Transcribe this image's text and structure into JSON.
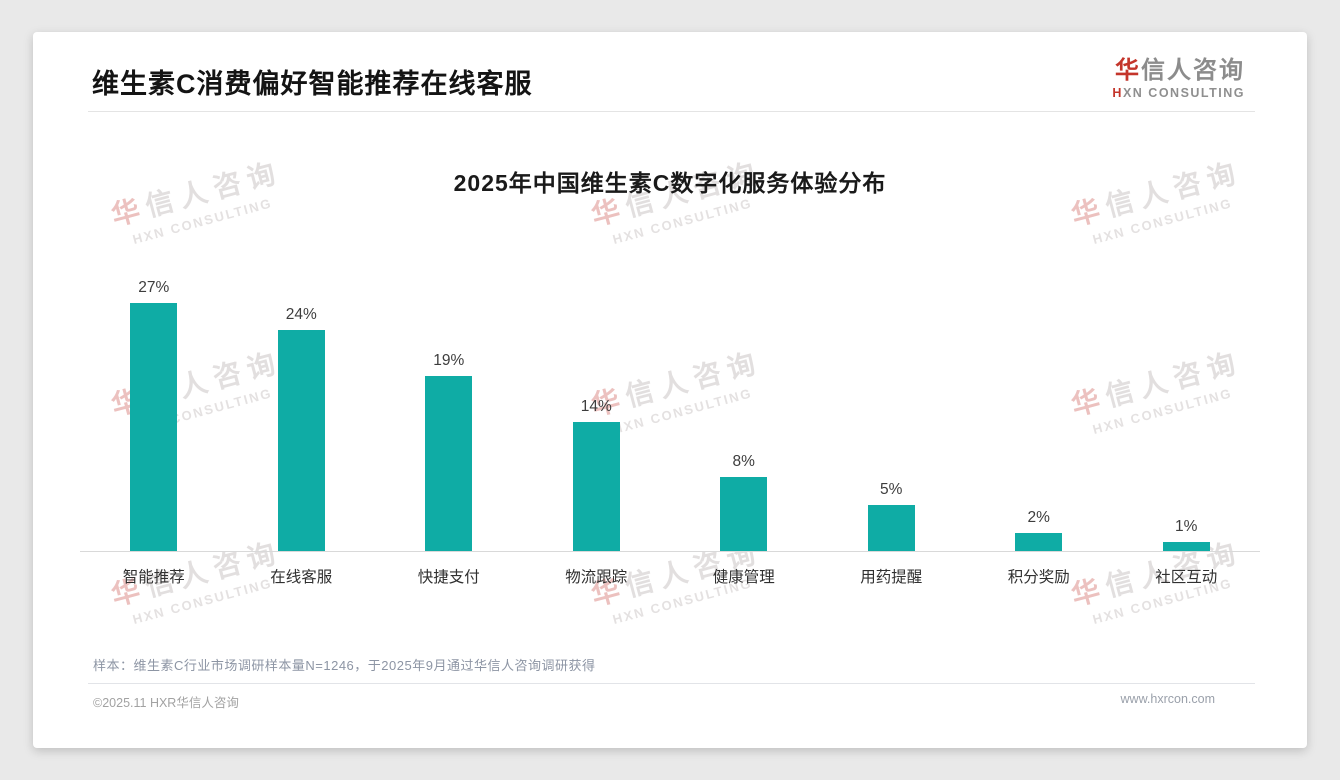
{
  "header": {
    "title": "维生素C消费偏好智能推荐在线客服"
  },
  "logo": {
    "cn_first": "华",
    "cn_rest": "信人咨询",
    "en_first": "H",
    "en_rest": "XN CONSULTING"
  },
  "watermark": {
    "cn_first": "华",
    "cn_rest": "信人咨询",
    "en": "HXN CONSULTING"
  },
  "chart_data": {
    "type": "bar",
    "title": "2025年中国维生素C数字化服务体验分布",
    "categories": [
      "智能推荐",
      "在线客服",
      "快捷支付",
      "物流跟踪",
      "健康管理",
      "用药提醒",
      "积分奖励",
      "社区互动"
    ],
    "values": [
      27,
      24,
      19,
      14,
      8,
      5,
      2,
      1
    ],
    "unit": "%",
    "bar_color": "#0faca5",
    "xlabel": "",
    "ylabel": "",
    "ylim": [
      0,
      30
    ],
    "grid": false,
    "legend": "none",
    "value_labels": true
  },
  "footer": {
    "note": "样本：维生素C行业市场调研样本量N=1246，于2025年9月通过华信人咨询调研获得",
    "copyright": "©2025.11 HXR华信人咨询",
    "website": "www.hxrcon.com"
  }
}
